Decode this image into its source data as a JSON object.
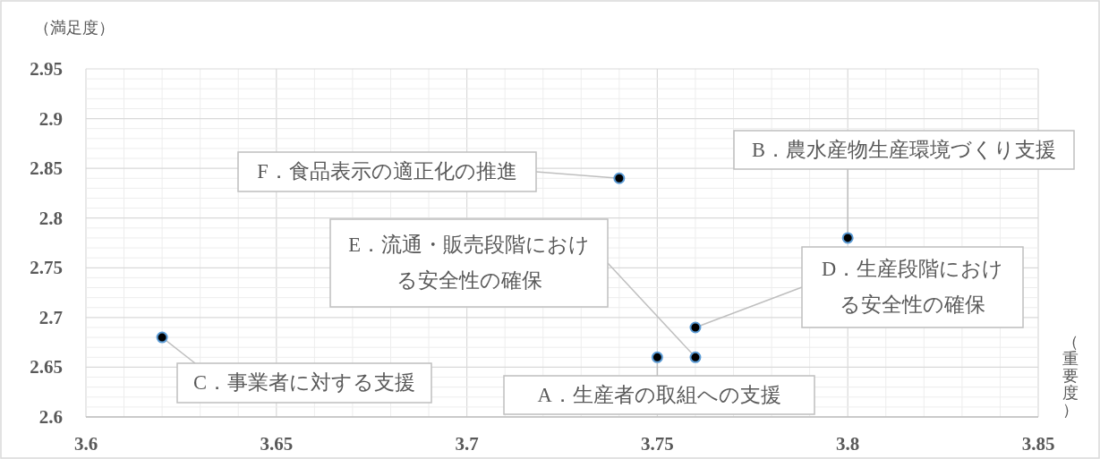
{
  "chart_data": {
    "type": "scatter",
    "ylabel": "（満足度）",
    "xlabel": "（重要度）",
    "x": [
      3.75,
      3.8,
      3.62,
      3.76,
      3.76,
      3.74
    ],
    "values": [
      2.66,
      2.78,
      2.68,
      2.69,
      2.66,
      2.84
    ],
    "color": "#000000",
    "marker": "circle",
    "grid": true,
    "xlim": [
      3.6,
      3.85
    ],
    "xticks": [
      3.6,
      3.65,
      3.7,
      3.75,
      3.8,
      3.85
    ],
    "ylim": [
      2.6,
      2.95
    ],
    "yticks": [
      2.6,
      2.65,
      2.7,
      2.75,
      2.8,
      2.85,
      2.9,
      2.95
    ],
    "annotations": [
      {
        "text": "A．生産者の取組への支援",
        "x": 3.75,
        "y": 2.66
      },
      {
        "text": "B．農水産物生産環境づくり支援",
        "x": 3.8,
        "y": 2.78
      },
      {
        "text": "C．事業者に対する支援",
        "x": 3.62,
        "y": 2.68
      },
      {
        "text": "D．生産段階における安全性の確保",
        "x": 3.76,
        "y": 2.69
      },
      {
        "text": "E．流通・販売段階における安全性の確保",
        "x": 3.76,
        "y": 2.66
      },
      {
        "text": "F．食品表示の適正化の推進",
        "x": 3.74,
        "y": 2.84
      }
    ]
  }
}
